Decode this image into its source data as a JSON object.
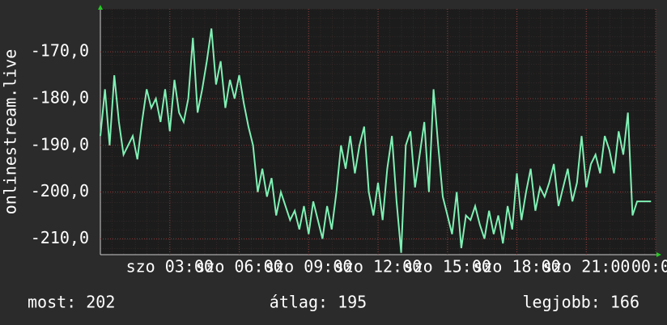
{
  "chart_data": {
    "type": "line",
    "y_label": "onlinestream.live",
    "annotations": [
      "most: 202",
      "átlag: 195",
      "legjobb: 166"
    ],
    "x": [
      0,
      0.2,
      0.4,
      0.6,
      0.8,
      1,
      1.2,
      1.4,
      1.6,
      1.8,
      2,
      2.2,
      2.4,
      2.6,
      2.8,
      3,
      3.2,
      3.4,
      3.6,
      3.8,
      4,
      4.2,
      4.4,
      4.6,
      4.8,
      5,
      5.2,
      5.4,
      5.6,
      5.8,
      6,
      6.2,
      6.4,
      6.6,
      6.8,
      7,
      7.2,
      7.4,
      7.6,
      7.8,
      8,
      8.2,
      8.4,
      8.6,
      8.8,
      9,
      9.2,
      9.4,
      9.6,
      9.8,
      10,
      10.2,
      10.4,
      10.6,
      10.8,
      11,
      11.2,
      11.4,
      11.6,
      11.8,
      12,
      12.2,
      12.4,
      12.6,
      12.8,
      13,
      13.2,
      13.4,
      13.6,
      13.8,
      14,
      14.2,
      14.4,
      14.6,
      14.8,
      15,
      15.2,
      15.4,
      15.6,
      15.8,
      16,
      16.2,
      16.4,
      16.6,
      16.8,
      17,
      17.2,
      17.4,
      17.6,
      17.8,
      18,
      18.2,
      18.4,
      18.6,
      18.8,
      19,
      19.2,
      19.4,
      19.6,
      19.8,
      20,
      20.2,
      20.4,
      20.6,
      20.8,
      21,
      21.2,
      21.4,
      21.6,
      21.8,
      22,
      22.2,
      22.4,
      22.6,
      22.8,
      23,
      23.2,
      23.4,
      23.6,
      23.8
    ],
    "series": [
      {
        "color": "#7ff0b4",
        "values": [
          -188,
          -178,
          -190,
          -175,
          -185,
          -192,
          -190,
          -188,
          -193,
          -185,
          -178,
          -182,
          -180,
          -185,
          -178,
          -187,
          -176,
          -183,
          -185,
          -180,
          -167,
          -183,
          -178,
          -172,
          -165,
          -177,
          -172,
          -182,
          -176,
          -180,
          -175,
          -181,
          -186,
          -190,
          -200,
          -195,
          -201,
          -197,
          -205,
          -200,
          -203,
          -206,
          -204,
          -208,
          -203,
          -209,
          -202,
          -206,
          -210,
          -203,
          -208,
          -200,
          -190,
          -195,
          -188,
          -196,
          -190,
          -186,
          -200,
          -205,
          -198,
          -206,
          -195,
          -188,
          -202,
          -213,
          -190,
          -187,
          -199,
          -192,
          -185,
          -200,
          -178,
          -190,
          -201,
          -205,
          -209,
          -200,
          -212,
          -205,
          -206,
          -203,
          -207,
          -210,
          -204,
          -209,
          -205,
          -211,
          -203,
          -208,
          -196,
          -206,
          -200,
          -195,
          -204,
          -199,
          -201,
          -198,
          -194,
          -203,
          -199,
          -195,
          -202,
          -198,
          -188,
          -199,
          -194,
          -192,
          -196,
          -188,
          -191,
          -196,
          -187,
          -192,
          -183,
          -205,
          -202,
          -202,
          -202,
          -202
        ]
      }
    ],
    "xlim": [
      0,
      24
    ],
    "xticks": [
      {
        "value": 3,
        "label": "szo 03:00"
      },
      {
        "value": 6,
        "label": "szo 06:00"
      },
      {
        "value": 9,
        "label": "szo 09:00"
      },
      {
        "value": 12,
        "label": "szo 12:00"
      },
      {
        "value": 15,
        "label": "szo 15:00"
      },
      {
        "value": 18,
        "label": "szo 18:00"
      },
      {
        "value": 21,
        "label": "szo 21:00"
      },
      {
        "value": 24,
        "label": "00:00"
      }
    ],
    "ylim": [
      -213.4,
      -160.8
    ],
    "yticks": [
      {
        "value": -210,
        "label": "-210,0"
      },
      {
        "value": -200,
        "label": "-200,0"
      },
      {
        "value": -190,
        "label": "-190,0"
      },
      {
        "value": -180,
        "label": "-180,0"
      },
      {
        "value": -170,
        "label": "-170,0"
      }
    ],
    "grid": true
  }
}
